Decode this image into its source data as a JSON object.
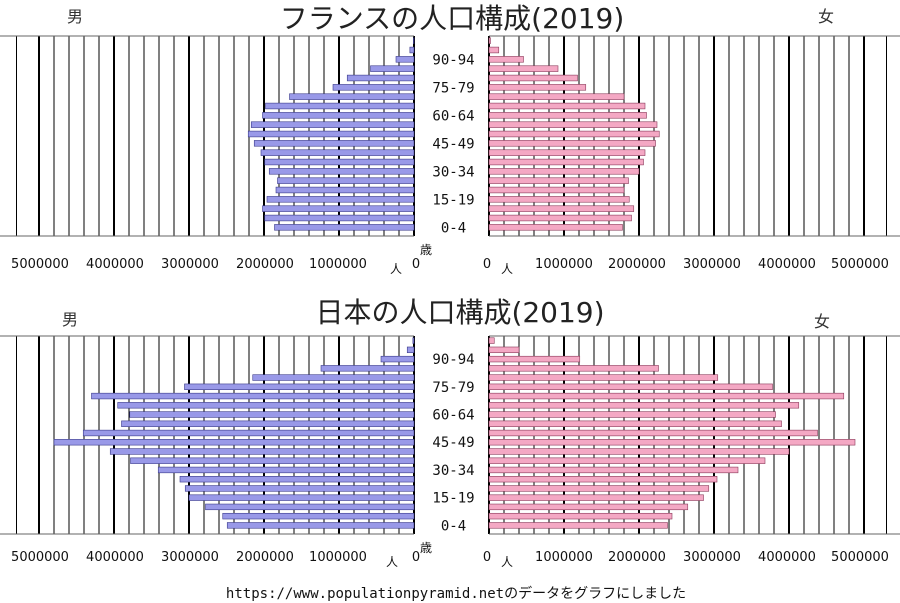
{
  "charts": [
    {
      "title": "フランスの人口構成(2019)",
      "male_label": "男",
      "female_label": "女"
    },
    {
      "title": "日本の人口構成(2019)",
      "male_label": "男",
      "female_label": "女"
    }
  ],
  "age_axis_label": "歳",
  "unit_label": "人",
  "age_labels_shown": [
    "90-94",
    "75-79",
    "60-64",
    "45-49",
    "30-34",
    "15-19",
    "0-4"
  ],
  "tick_labels_left": [
    "5000000",
    "4000000",
    "3000000",
    "2000000",
    "1000000",
    "0"
  ],
  "tick_labels_right": [
    "0",
    "1000000",
    "2000000",
    "3000000",
    "4000000",
    "5000000"
  ],
  "source_text": "https://www.populationpyramid.netのデータをグラフにしました",
  "colors": {
    "male_bar": "#9999e8",
    "female_bar": "#f4a8c4",
    "grid": "#000000"
  },
  "chart_data": [
    {
      "type": "bar",
      "orientation": "population-pyramid",
      "title": "フランスの人口構成(2019)",
      "categories": [
        "0-4",
        "5-9",
        "10-14",
        "15-19",
        "20-24",
        "25-29",
        "30-34",
        "35-39",
        "40-44",
        "45-49",
        "50-54",
        "55-59",
        "60-64",
        "65-69",
        "70-74",
        "75-79",
        "80-84",
        "85-89",
        "90-94",
        "95-99",
        "100+"
      ],
      "xlim": [
        0,
        5000000
      ],
      "series": [
        {
          "name": "男",
          "values": [
            1860000,
            1990000,
            2020000,
            1960000,
            1840000,
            1820000,
            1930000,
            1990000,
            2040000,
            2130000,
            2210000,
            2170000,
            2020000,
            1980000,
            1660000,
            1080000,
            890000,
            580000,
            240000,
            55000,
            8000
          ]
        },
        {
          "name": "女",
          "values": [
            1780000,
            1900000,
            1930000,
            1870000,
            1800000,
            1860000,
            2000000,
            2060000,
            2080000,
            2220000,
            2270000,
            2240000,
            2100000,
            2080000,
            1800000,
            1290000,
            1180000,
            920000,
            460000,
            130000,
            20000
          ]
        }
      ]
    },
    {
      "type": "bar",
      "orientation": "population-pyramid",
      "title": "日本の人口構成(2019)",
      "categories": [
        "0-4",
        "5-9",
        "10-14",
        "15-19",
        "20-24",
        "25-29",
        "30-34",
        "35-39",
        "40-44",
        "45-49",
        "50-54",
        "55-59",
        "60-64",
        "65-69",
        "70-74",
        "75-79",
        "80-84",
        "85-89",
        "90-94",
        "95-99",
        "100+"
      ],
      "xlim": [
        0,
        5000000
      ],
      "series": [
        {
          "name": "男",
          "values": [
            2490000,
            2550000,
            2780000,
            3000000,
            3050000,
            3120000,
            3410000,
            3780000,
            4050000,
            4800000,
            4410000,
            3900000,
            3790000,
            3950000,
            4300000,
            3060000,
            2150000,
            1240000,
            440000,
            90000,
            15000
          ]
        },
        {
          "name": "女",
          "values": [
            2380000,
            2440000,
            2650000,
            2860000,
            2930000,
            3040000,
            3320000,
            3680000,
            4000000,
            4880000,
            4380000,
            3900000,
            3820000,
            4130000,
            4730000,
            3780000,
            3050000,
            2260000,
            1210000,
            400000,
            70000
          ]
        }
      ]
    }
  ]
}
